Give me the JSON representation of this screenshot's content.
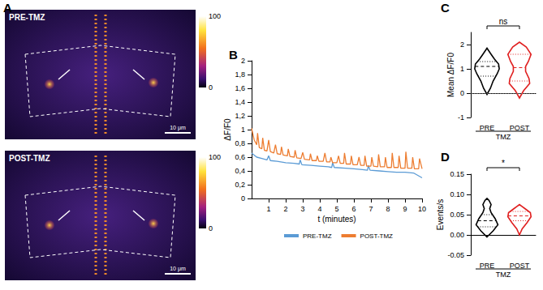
{
  "chart_data": [
    {
      "type": "image",
      "panel": "A",
      "images": [
        {
          "label": "PRE-TMZ",
          "scale_bar": "10 μm"
        },
        {
          "label": "POST-TMZ",
          "scale_bar": "10 μm"
        }
      ],
      "colorbar": {
        "range": [
          0,
          100
        ],
        "ticks": [
          0,
          100
        ]
      }
    },
    {
      "type": "line",
      "panel": "B",
      "x_label": "t (minutes)",
      "y_label": "ΔF/F0",
      "xlim": [
        0,
        10
      ],
      "xticks": [
        1,
        2,
        3,
        4,
        5,
        6,
        7,
        8,
        9,
        10
      ],
      "ylim": [
        0,
        2
      ],
      "yticks": [
        0,
        {
          "value": 0.2,
          "label": "0,2"
        },
        {
          "value": 0.4,
          "label": "0,4"
        },
        {
          "value": 0.6,
          "label": "0,6"
        },
        {
          "value": 0.8,
          "label": "0,8"
        },
        1,
        {
          "value": 1.2,
          "label": "1,2"
        },
        {
          "value": 1.4,
          "label": "1,4"
        },
        {
          "value": 1.6,
          "label": "1,6"
        },
        {
          "value": 1.8,
          "label": "1,8"
        },
        2
      ],
      "grid": false,
      "legend": "bottom",
      "series": [
        {
          "name": "PRE-TMZ",
          "color": "#5b9bd5",
          "x": [
            0,
            0.3,
            0.6,
            0.9,
            1.0,
            1.1,
            1.5,
            2.0,
            2.5,
            2.8,
            2.85,
            2.95,
            3.5,
            4.0,
            4.5,
            4.7,
            4.75,
            4.85,
            5.5,
            6.0,
            6.5,
            6.8,
            6.85,
            6.95,
            7.5,
            8.0,
            8.5,
            9.0,
            9.5,
            10
          ],
          "values": [
            0.66,
            0.6,
            0.58,
            0.56,
            0.62,
            0.55,
            0.54,
            0.52,
            0.51,
            0.5,
            0.56,
            0.49,
            0.48,
            0.47,
            0.46,
            0.45,
            0.52,
            0.45,
            0.44,
            0.43,
            0.42,
            0.41,
            0.48,
            0.41,
            0.4,
            0.39,
            0.38,
            0.38,
            0.37,
            0.3
          ]
        },
        {
          "name": "POST-TMZ",
          "color": "#ed7d31",
          "x": [
            0,
            0.15,
            0.3,
            0.35,
            0.45,
            0.6,
            0.65,
            0.75,
            0.9,
            1.0,
            1.1,
            1.3,
            1.4,
            1.5,
            1.7,
            1.75,
            1.85,
            2.1,
            2.15,
            2.25,
            2.5,
            2.55,
            2.65,
            2.9,
            3.0,
            3.1,
            3.4,
            3.45,
            3.55,
            3.8,
            3.85,
            3.95,
            4.2,
            4.3,
            4.4,
            4.6,
            4.65,
            4.75,
            5.0,
            5.1,
            5.2,
            5.4,
            5.45,
            5.55,
            5.8,
            5.85,
            5.95,
            6.2,
            6.3,
            6.4,
            6.6,
            6.65,
            6.75,
            7.0,
            7.05,
            7.15,
            7.4,
            7.45,
            7.55,
            7.8,
            7.85,
            7.95,
            8.2,
            8.25,
            8.35,
            8.6,
            8.65,
            8.75,
            9.0,
            9.05,
            9.15,
            9.4,
            9.45,
            9.55,
            9.8,
            9.85,
            10
          ],
          "values": [
            1.02,
            0.85,
            0.78,
            0.95,
            0.74,
            0.72,
            0.88,
            0.7,
            0.69,
            0.85,
            0.68,
            0.66,
            0.78,
            0.65,
            0.64,
            0.75,
            0.63,
            0.62,
            0.72,
            0.61,
            0.6,
            0.7,
            0.59,
            0.58,
            0.67,
            0.57,
            0.56,
            0.65,
            0.55,
            0.55,
            0.62,
            0.54,
            0.54,
            0.66,
            0.53,
            0.53,
            0.6,
            0.52,
            0.52,
            0.62,
            0.51,
            0.51,
            0.66,
            0.5,
            0.5,
            0.62,
            0.49,
            0.49,
            0.6,
            0.48,
            0.48,
            0.62,
            0.47,
            0.47,
            0.6,
            0.47,
            0.46,
            0.64,
            0.46,
            0.46,
            0.6,
            0.45,
            0.45,
            0.66,
            0.45,
            0.45,
            0.62,
            0.44,
            0.44,
            0.68,
            0.44,
            0.44,
            0.6,
            0.43,
            0.43,
            0.58,
            0.43
          ]
        }
      ]
    },
    {
      "type": "violin",
      "panel": "C",
      "y_label": "Mean ΔF/F0",
      "categories": [
        "PRE",
        "POST"
      ],
      "group_label": "TMZ",
      "annotations": [
        "ns"
      ],
      "ylim": [
        -1,
        2.5
      ],
      "yticks": [
        -1,
        0,
        1,
        2
      ],
      "grid": false,
      "reference_line": 0,
      "violins": [
        {
          "color": "#000000",
          "y": [
            -0.05,
            0.2,
            0.5,
            0.8,
            1.0,
            1.2,
            1.4,
            1.6,
            1.85
          ],
          "density": [
            0,
            0.25,
            0.45,
            0.75,
            0.9,
            0.85,
            0.55,
            0.3,
            0
          ],
          "median": 1.1,
          "quartiles": [
            0.7,
            1.3
          ]
        },
        {
          "color": "#e02020",
          "y": [
            -0.2,
            0.1,
            0.4,
            0.6,
            0.9,
            1.1,
            1.3,
            1.6,
            1.9,
            2.1
          ],
          "density": [
            0,
            0.3,
            0.75,
            0.7,
            0.45,
            0.45,
            0.65,
            0.85,
            0.5,
            0
          ],
          "median": 1.05,
          "quartiles": [
            0.5,
            1.6
          ]
        }
      ]
    },
    {
      "type": "violin",
      "panel": "D",
      "y_label": "Events/s",
      "categories": [
        "PRE",
        "POST"
      ],
      "group_label": "TMZ",
      "annotations": [
        "*"
      ],
      "ylim": [
        -0.05,
        0.15
      ],
      "yticks": [
        -0.05,
        {
          "value": 0,
          "label": "0.00"
        },
        0.05,
        {
          "value": 0.1,
          "label": "0.10"
        },
        0.15
      ],
      "grid": false,
      "violins": [
        {
          "color": "#000000",
          "y": [
            -0.005,
            0.01,
            0.025,
            0.04,
            0.055,
            0.065,
            0.075,
            0.085,
            0.09
          ],
          "density": [
            0,
            0.45,
            0.8,
            0.6,
            0.3,
            0.2,
            0.3,
            0.15,
            0
          ],
          "median": 0.035,
          "quartiles": [
            0.02,
            0.05
          ]
        },
        {
          "color": "#e02020",
          "y": [
            0.0,
            0.015,
            0.03,
            0.045,
            0.055,
            0.065,
            0.075
          ],
          "density": [
            0,
            0.2,
            0.55,
            0.85,
            0.8,
            0.4,
            0
          ],
          "median": 0.047,
          "quartiles": [
            0.035,
            0.058
          ]
        }
      ]
    }
  ]
}
